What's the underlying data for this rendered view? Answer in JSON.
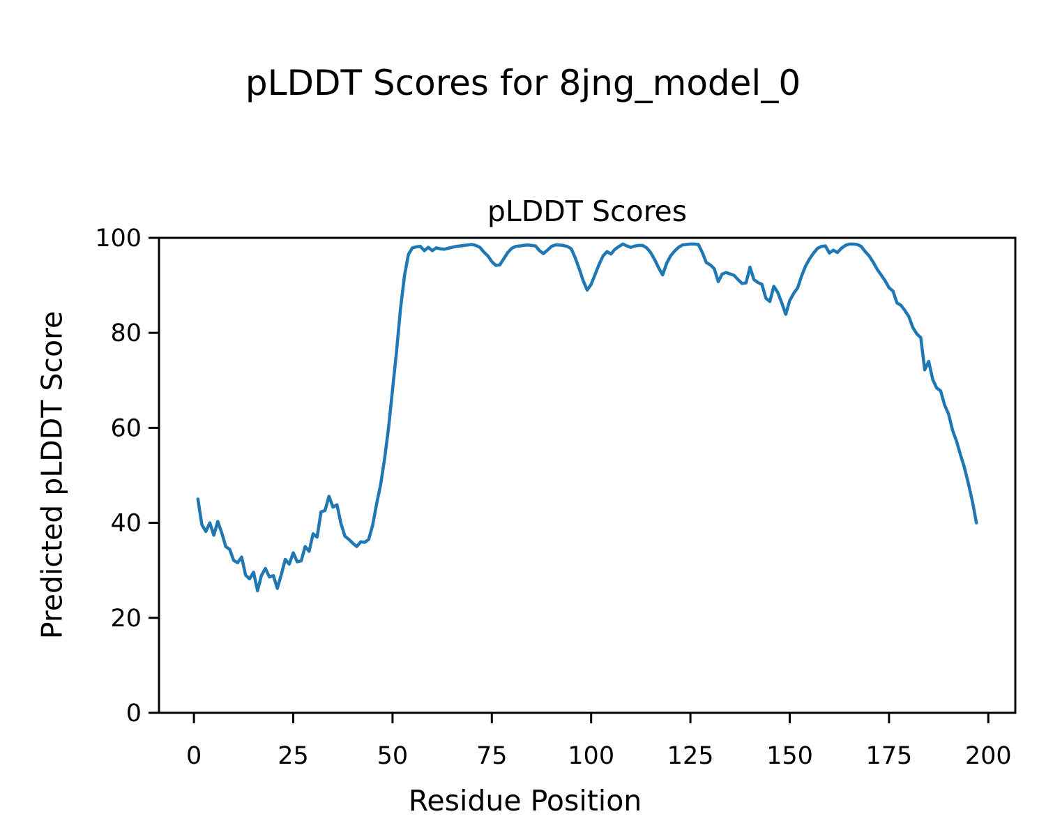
{
  "figure": {
    "suptitle": "pLDDT Scores for 8jng_model_0",
    "background": "#ffffff",
    "text_color": "#000000"
  },
  "chart_data": {
    "type": "line",
    "title": "pLDDT Scores",
    "xlabel": "Residue Position",
    "ylabel": "Predicted pLDDT Score",
    "series_name": "pLDDT per residue",
    "legend": "none",
    "grid": false,
    "line_color": "#1f77b4",
    "line_width": 4.5,
    "xlim": [
      -8.8,
      206.8
    ],
    "ylim": [
      0,
      100
    ],
    "x_ticks": [
      0,
      25,
      50,
      75,
      100,
      125,
      150,
      175,
      200
    ],
    "y_ticks": [
      0,
      20,
      40,
      60,
      80,
      100
    ],
    "x": [
      1,
      2,
      3,
      4,
      5,
      6,
      7,
      8,
      9,
      10,
      11,
      12,
      13,
      14,
      15,
      16,
      17,
      18,
      19,
      20,
      21,
      22,
      23,
      24,
      25,
      26,
      27,
      28,
      29,
      30,
      31,
      32,
      33,
      34,
      35,
      36,
      37,
      38,
      39,
      40,
      41,
      42,
      43,
      44,
      45,
      46,
      47,
      48,
      49,
      50,
      51,
      52,
      53,
      54,
      55,
      56,
      57,
      58,
      59,
      60,
      61,
      62,
      63,
      64,
      65,
      66,
      67,
      68,
      69,
      70,
      71,
      72,
      73,
      74,
      75,
      76,
      77,
      78,
      79,
      80,
      81,
      82,
      83,
      84,
      85,
      86,
      87,
      88,
      89,
      90,
      91,
      92,
      93,
      94,
      95,
      96,
      97,
      98,
      99,
      100,
      101,
      102,
      103,
      104,
      105,
      106,
      107,
      108,
      109,
      110,
      111,
      112,
      113,
      114,
      115,
      116,
      117,
      118,
      119,
      120,
      121,
      122,
      123,
      124,
      125,
      126,
      127,
      128,
      129,
      130,
      131,
      132,
      133,
      134,
      135,
      136,
      137,
      138,
      139,
      140,
      141,
      142,
      143,
      144,
      145,
      146,
      147,
      148,
      149,
      150,
      151,
      152,
      153,
      154,
      155,
      156,
      157,
      158,
      159,
      160,
      161,
      162,
      163,
      164,
      165,
      166,
      167,
      168,
      169,
      170,
      171,
      172,
      173,
      174,
      175,
      176,
      177,
      178,
      179,
      180,
      181,
      182,
      183,
      184,
      185,
      186,
      187,
      188,
      189,
      190,
      191,
      192,
      193,
      194,
      195,
      196,
      197
    ],
    "y": [
      45.0,
      39.6,
      38.2,
      40.0,
      37.4,
      40.3,
      37.9,
      35.0,
      34.4,
      32.1,
      31.6,
      32.8,
      29.0,
      28.2,
      29.6,
      25.7,
      28.9,
      30.4,
      28.6,
      28.9,
      26.2,
      29.1,
      32.3,
      31.3,
      33.7,
      31.8,
      32.0,
      35.0,
      34.0,
      37.7,
      37.0,
      42.3,
      42.6,
      45.6,
      43.3,
      43.8,
      39.9,
      37.2,
      36.5,
      35.7,
      35.0,
      36.0,
      35.9,
      36.5,
      39.5,
      44.0,
      48.0,
      53.5,
      60.0,
      68.0,
      76.0,
      85.0,
      92.0,
      96.5,
      97.9,
      98.1,
      98.2,
      97.3,
      98.0,
      97.3,
      97.9,
      97.7,
      97.6,
      97.8,
      98.0,
      98.2,
      98.3,
      98.4,
      98.5,
      98.6,
      98.4,
      98.0,
      97.0,
      96.2,
      95.0,
      94.2,
      94.3,
      95.6,
      96.9,
      97.8,
      98.2,
      98.3,
      98.4,
      98.5,
      98.4,
      98.3,
      97.3,
      96.7,
      97.4,
      98.2,
      98.5,
      98.5,
      98.4,
      98.2,
      97.7,
      95.8,
      93.5,
      91.0,
      89.0,
      90.2,
      92.3,
      94.4,
      96.2,
      97.1,
      96.6,
      97.6,
      98.2,
      98.7,
      98.3,
      98.0,
      98.3,
      98.4,
      98.4,
      97.9,
      96.9,
      95.4,
      93.7,
      92.2,
      94.6,
      96.2,
      97.2,
      98.0,
      98.5,
      98.6,
      98.7,
      98.7,
      98.6,
      96.9,
      94.8,
      94.3,
      93.5,
      90.8,
      92.4,
      92.7,
      92.4,
      92.1,
      91.2,
      90.4,
      90.5,
      93.8,
      91.2,
      90.6,
      90.2,
      87.3,
      86.6,
      89.8,
      88.5,
      86.3,
      83.9,
      86.8,
      88.3,
      89.5,
      92.0,
      94.1,
      95.6,
      96.8,
      97.8,
      98.2,
      98.3,
      96.8,
      97.4,
      96.9,
      97.8,
      98.4,
      98.7,
      98.7,
      98.6,
      98.2,
      97.1,
      96.2,
      94.9,
      93.4,
      92.2,
      91.0,
      89.5,
      88.8,
      86.3,
      85.8,
      84.7,
      83.4,
      81.1,
      79.8,
      79.0,
      72.2,
      74.0,
      70.2,
      68.4,
      67.8,
      64.8,
      62.9,
      59.5,
      57.2,
      54.3,
      51.6,
      48.2,
      44.5,
      40.0
    ]
  }
}
